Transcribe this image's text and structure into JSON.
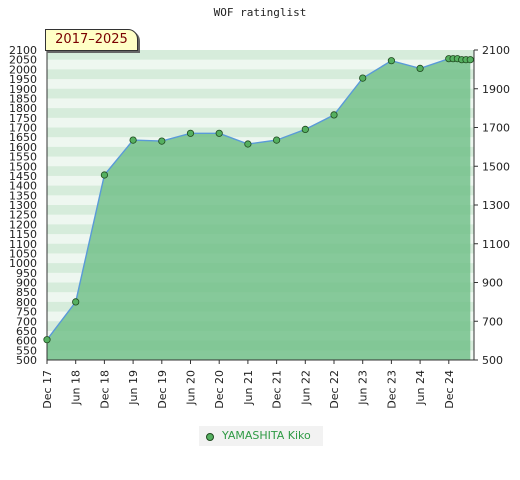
{
  "title": "WOF ratinglist",
  "badge": "2017–2025",
  "legend": {
    "label": "YAMASHITA Kiko"
  },
  "colors": {
    "line": "#5a9ad8",
    "area": "#6fbe86",
    "marker": "#55b060",
    "legend_text": "#2e9a44",
    "badge_text": "#7a0000"
  },
  "chart_data": {
    "type": "area",
    "x_tick_labels": [
      "Dec 17",
      "Jun 18",
      "Dec 18",
      "Jun 19",
      "Dec 19",
      "Jun 20",
      "Dec 20",
      "Jun 21",
      "Dec 21",
      "Jun 22",
      "Dec 22",
      "Jun 23",
      "Dec 23",
      "Jun 24",
      "Dec 24"
    ],
    "left_y_ticks": [
      500,
      550,
      600,
      650,
      700,
      750,
      800,
      850,
      900,
      950,
      1000,
      1050,
      1100,
      1150,
      1200,
      1250,
      1300,
      1350,
      1400,
      1450,
      1500,
      1550,
      1600,
      1650,
      1700,
      1750,
      1800,
      1850,
      1900,
      1950,
      2000,
      2050,
      2100
    ],
    "right_y_ticks": [
      500,
      700,
      900,
      1100,
      1300,
      1500,
      1700,
      1900,
      2100
    ],
    "ylim": [
      500,
      2100
    ],
    "grid": true,
    "legend_position": "bottom-center",
    "series": [
      {
        "name": "YAMASHITA Kiko",
        "points": [
          {
            "x": 0,
            "y": 605
          },
          {
            "x": 1,
            "y": 800
          },
          {
            "x": 2,
            "y": 1455
          },
          {
            "x": 3,
            "y": 1635
          },
          {
            "x": 4,
            "y": 1630
          },
          {
            "x": 5,
            "y": 1670
          },
          {
            "x": 6,
            "y": 1670
          },
          {
            "x": 7,
            "y": 1615
          },
          {
            "x": 8,
            "y": 1635
          },
          {
            "x": 9,
            "y": 1690
          },
          {
            "x": 10,
            "y": 1765
          },
          {
            "x": 11,
            "y": 1955
          },
          {
            "x": 12,
            "y": 2045
          },
          {
            "x": 13,
            "y": 2005
          },
          {
            "x": 14,
            "y": 2055
          },
          {
            "x": 14.15,
            "y": 2055
          },
          {
            "x": 14.3,
            "y": 2055
          },
          {
            "x": 14.45,
            "y": 2050
          },
          {
            "x": 14.6,
            "y": 2050
          },
          {
            "x": 14.75,
            "y": 2050
          }
        ]
      }
    ]
  }
}
